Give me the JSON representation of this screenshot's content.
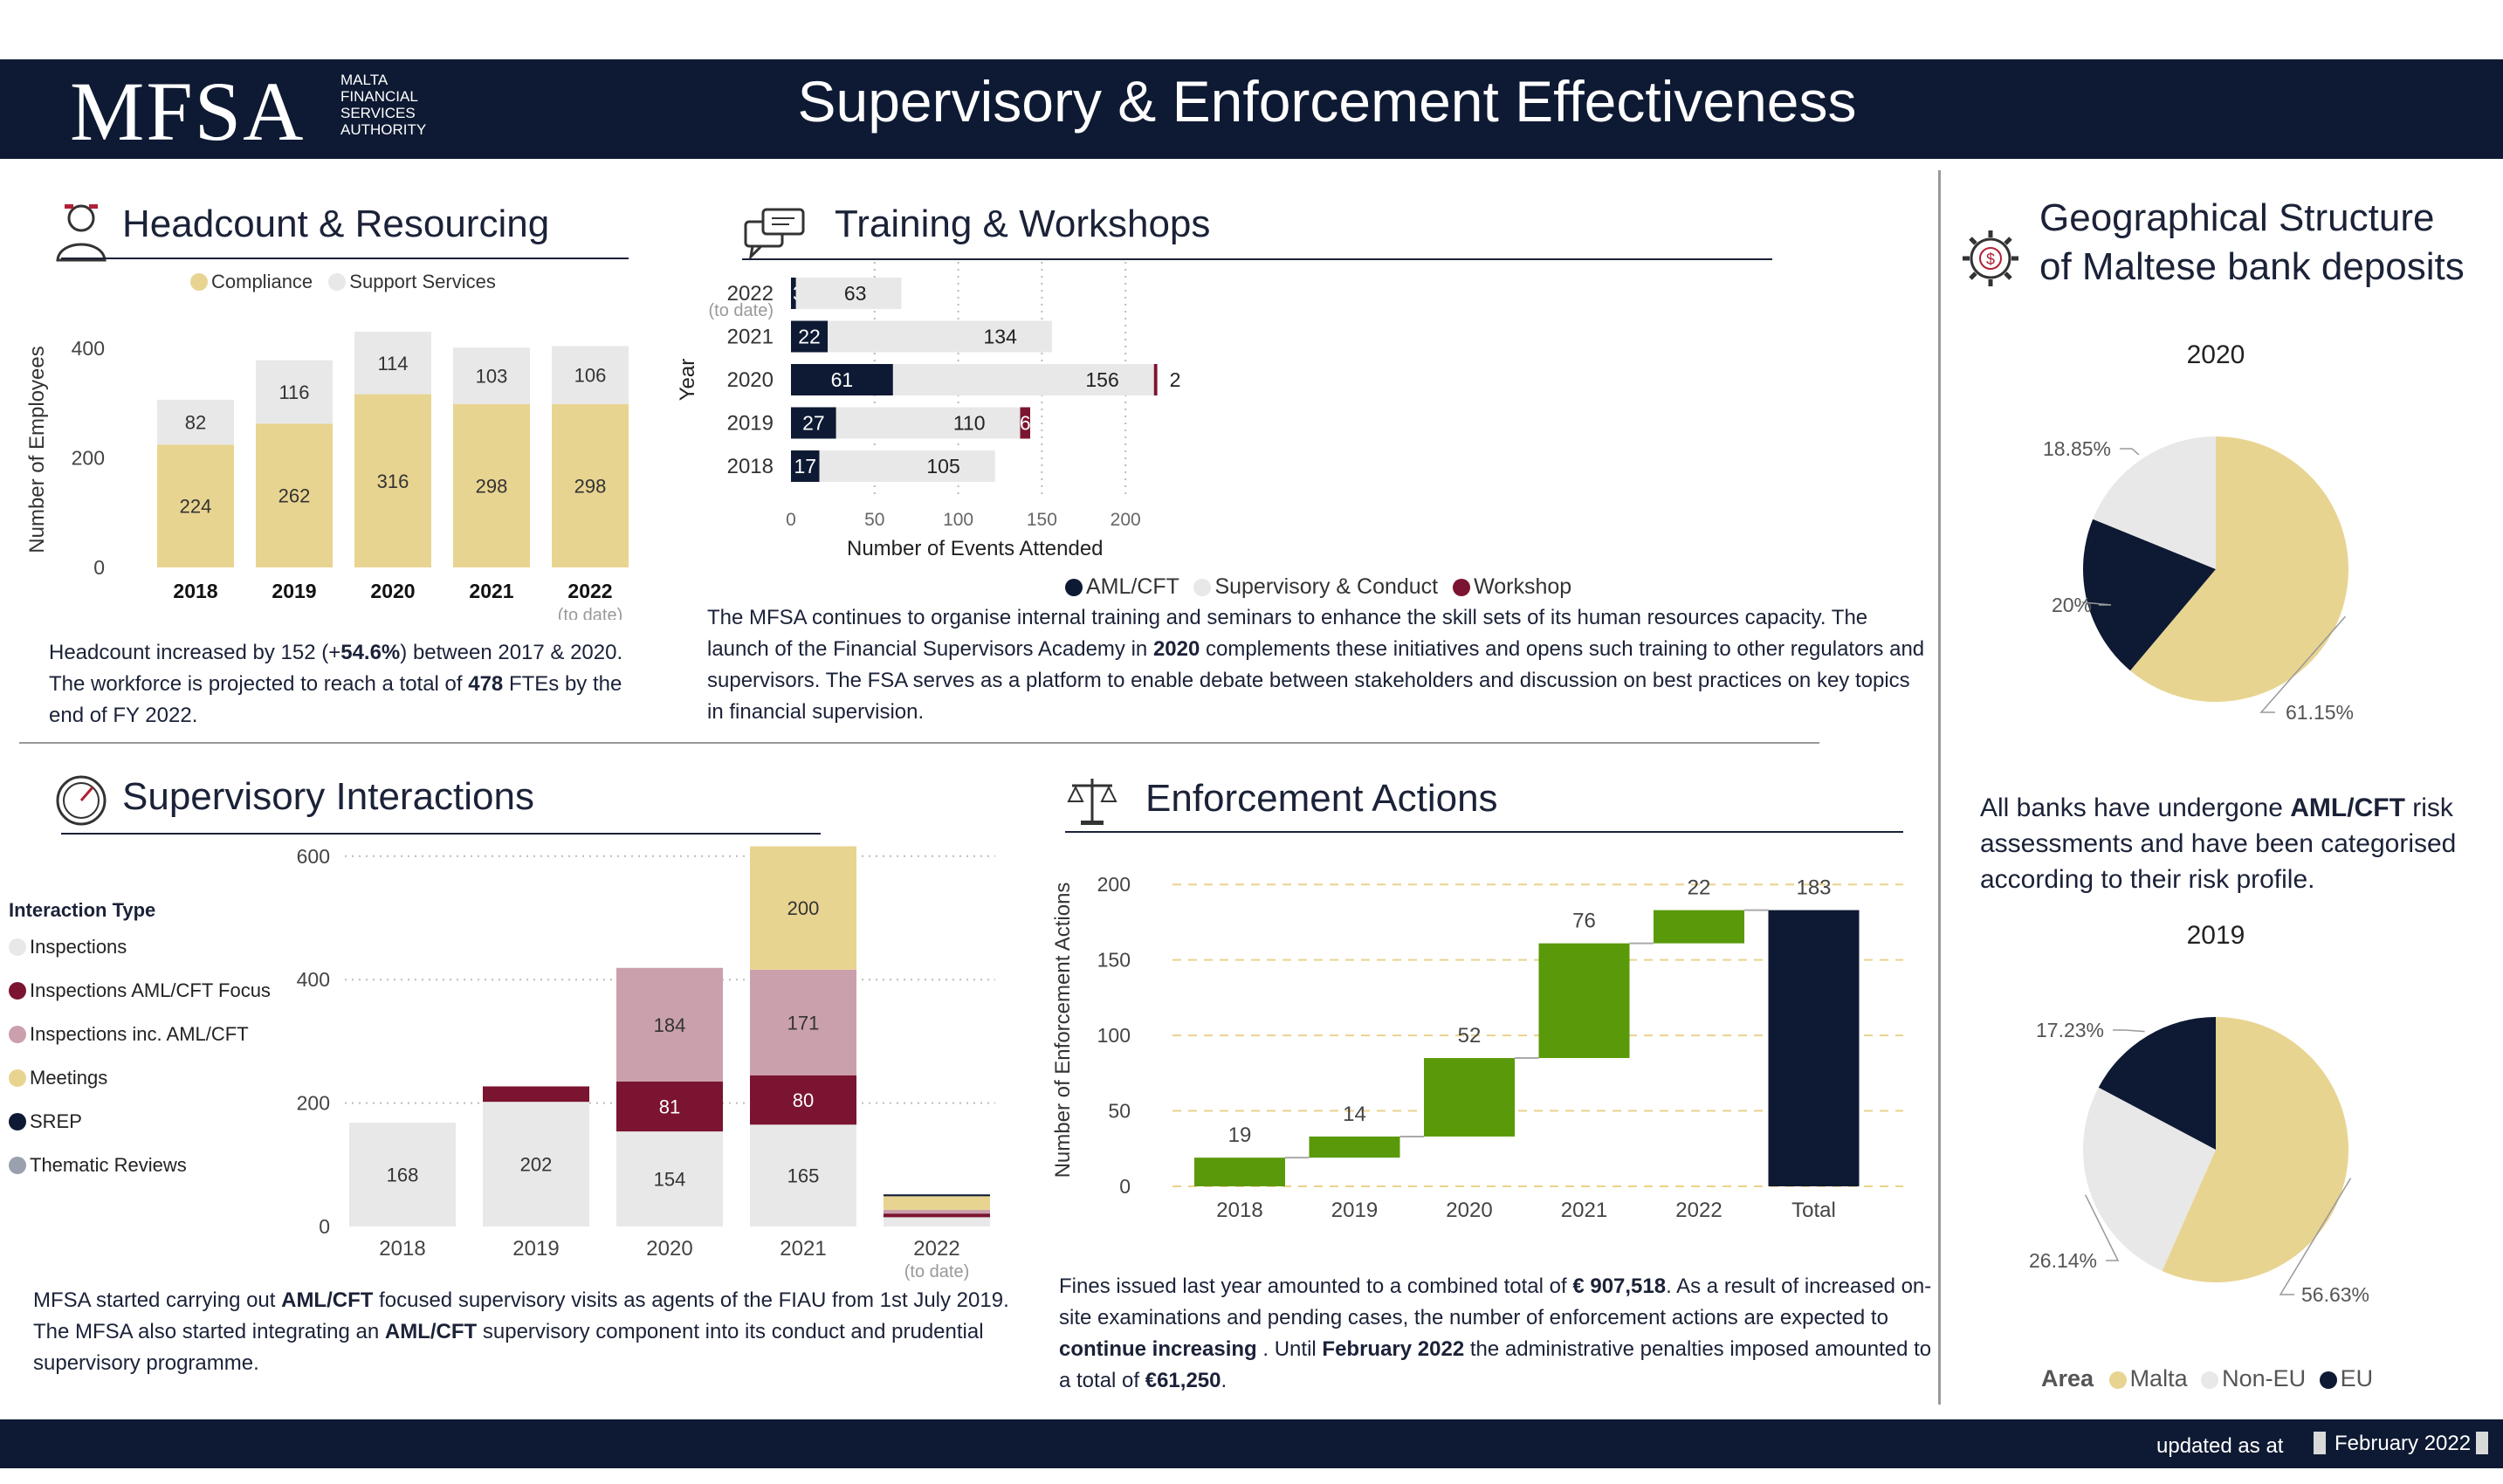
{
  "header": {
    "logo": "MFSA",
    "logo_sub": [
      "MALTA",
      "FINANCIAL",
      "SERVICES",
      "AUTHORITY"
    ],
    "title": "Supervisory & Enforcement Effectiveness"
  },
  "footer": {
    "label": "updated as at",
    "date": "February 2022"
  },
  "colors": {
    "navy": "#0e1a33",
    "gold": "#e8d491",
    "lightgray": "#e8e8e8",
    "maroon": "#7b1430",
    "pink": "#c9a0ab",
    "green": "#5a9a0a",
    "bluegray": "#9aa0ad"
  },
  "headcount": {
    "title": "Headcount & Resourcing",
    "legend": [
      "Compliance",
      "Support Services"
    ],
    "paragraph_html": "Headcount increased by 152 (+<b>54.6%</b>) between 2017 &amp; 2020. The workforce is projected to reach a total of <b>478</b> FTEs by the end of FY 2022."
  },
  "training": {
    "title": "Training & Workshops",
    "legend": [
      "AML/CFT",
      "Supervisory & Conduct",
      "Workshop"
    ],
    "paragraph_html": "The MFSA continues to organise internal training and seminars to enhance the skill sets of its human resources capacity. The launch of the Financial Supervisors Academy in <b>2020</b> complements these initiatives and opens such training to other regulators and supervisors. The FSA serves as a platform to enable debate between stakeholders and discussion on best practices on key topics in financial supervision."
  },
  "geo": {
    "title_lines": [
      "Geographical Structure",
      "of Maltese bank deposits"
    ],
    "statement_html": "All banks have undergone <b>AML/CFT</b> risk assessments and have been categorised according to their risk profile.",
    "legend_title": "Area",
    "legend": [
      "Malta",
      "Non-EU",
      "EU"
    ]
  },
  "supervisory": {
    "title": "Supervisory Interactions",
    "legend_title": "Interaction Type",
    "legend": [
      "Inspections",
      "Inspections AML/CFT Focus",
      "Inspections inc. AML/CFT",
      "Meetings",
      "SREP",
      "Thematic Reviews"
    ],
    "paragraph_html": "MFSA started carrying out <b>AML/CFT</b> focused supervisory visits as agents of the FIAU from 1st July 2019. The MFSA also started integrating an <b>AML/CFT</b> supervisory component into its conduct and prudential supervisory programme."
  },
  "enforcement": {
    "title": "Enforcement Actions",
    "paragraph_html": "Fines issued last year amounted to a combined total of <b>€ 907,518</b>. As a result of increased on-site examinations and pending cases, the number of enforcement actions are expected to <b>continue increasing</b> . Until <b>February 2022</b> the administrative penalties imposed amounted to a total of <b>€61,250</b>."
  },
  "chart_data": [
    {
      "id": "headcount",
      "type": "bar",
      "stacked": true,
      "categories": [
        "2018",
        "2019",
        "2020",
        "2021",
        "2022"
      ],
      "category_note": {
        "2022": "(to date)"
      },
      "series": [
        {
          "name": "Compliance",
          "values": [
            224,
            262,
            316,
            298,
            298
          ]
        },
        {
          "name": "Support Services",
          "values": [
            82,
            116,
            114,
            103,
            106
          ]
        }
      ],
      "ylabel": "Number of Employees",
      "yticks": [
        0,
        200,
        400
      ],
      "ylim": [
        0,
        430
      ]
    },
    {
      "id": "training",
      "type": "bar",
      "orientation": "horizontal",
      "stacked": true,
      "categories": [
        "2022",
        "2021",
        "2020",
        "2019",
        "2018"
      ],
      "category_note": {
        "2022": "(to date)"
      },
      "series": [
        {
          "name": "AML/CFT",
          "values": [
            3,
            22,
            61,
            27,
            17
          ]
        },
        {
          "name": "Supervisory & Conduct",
          "values": [
            63,
            134,
            156,
            110,
            105
          ]
        },
        {
          "name": "Workshop",
          "values": [
            null,
            null,
            2,
            6,
            null
          ]
        }
      ],
      "xlabel": "Number of Events Attended",
      "ylabel": "Year",
      "xticks": [
        0,
        50,
        100,
        150,
        200
      ],
      "xlim": [
        0,
        220
      ]
    },
    {
      "id": "deposits-2020",
      "type": "pie",
      "title": "2020",
      "labels": [
        "Malta",
        "EU",
        "Non-EU"
      ],
      "values": [
        61.15,
        20,
        18.85
      ],
      "value_labels": [
        "61.15%",
        "20%",
        "18.85%"
      ]
    },
    {
      "id": "deposits-2019",
      "type": "pie",
      "title": "2019",
      "labels": [
        "Malta",
        "Non-EU",
        "EU"
      ],
      "values": [
        56.63,
        26.14,
        17.23
      ],
      "value_labels": [
        "56.63%",
        "26.14%",
        "17.23%"
      ]
    },
    {
      "id": "supervisory",
      "type": "bar",
      "stacked": true,
      "categories": [
        "2018",
        "2019",
        "2020",
        "2021",
        "2022"
      ],
      "category_note": {
        "2022": "(to date)"
      },
      "series": [
        {
          "name": "Inspections",
          "values": [
            168,
            202,
            154,
            165,
            15
          ]
        },
        {
          "name": "Inspections AML/CFT Focus",
          "values": [
            0,
            25,
            81,
            80,
            6
          ]
        },
        {
          "name": "Inspections inc. AML/CFT",
          "values": [
            0,
            0,
            184,
            171,
            6
          ]
        },
        {
          "name": "Meetings",
          "values": [
            0,
            0,
            0,
            200,
            22
          ]
        },
        {
          "name": "SREP",
          "values": [
            0,
            0,
            0,
            0,
            3
          ]
        },
        {
          "name": "Thematic Reviews",
          "values": [
            0,
            0,
            0,
            0,
            0
          ]
        }
      ],
      "value_labels": {
        "Inspections": [
          "168",
          "202",
          "154",
          "165",
          null
        ],
        "Inspections AML/CFT Focus": [
          null,
          null,
          "81",
          "80",
          null
        ],
        "Inspections inc. AML/CFT": [
          null,
          null,
          "184",
          "171",
          null
        ],
        "Meetings": [
          null,
          null,
          null,
          "200",
          null
        ]
      },
      "yticks": [
        0,
        200,
        400,
        600
      ],
      "ylim": [
        0,
        640
      ]
    },
    {
      "id": "enforcement",
      "type": "waterfall",
      "categories": [
        "2018",
        "2019",
        "2020",
        "2021",
        "2022",
        "Total"
      ],
      "values": [
        19,
        14,
        52,
        76,
        22,
        183
      ],
      "ylabel": "Number of Enforcement Actions",
      "yticks": [
        0,
        50,
        100,
        150,
        200
      ],
      "ylim": [
        0,
        215
      ]
    }
  ]
}
